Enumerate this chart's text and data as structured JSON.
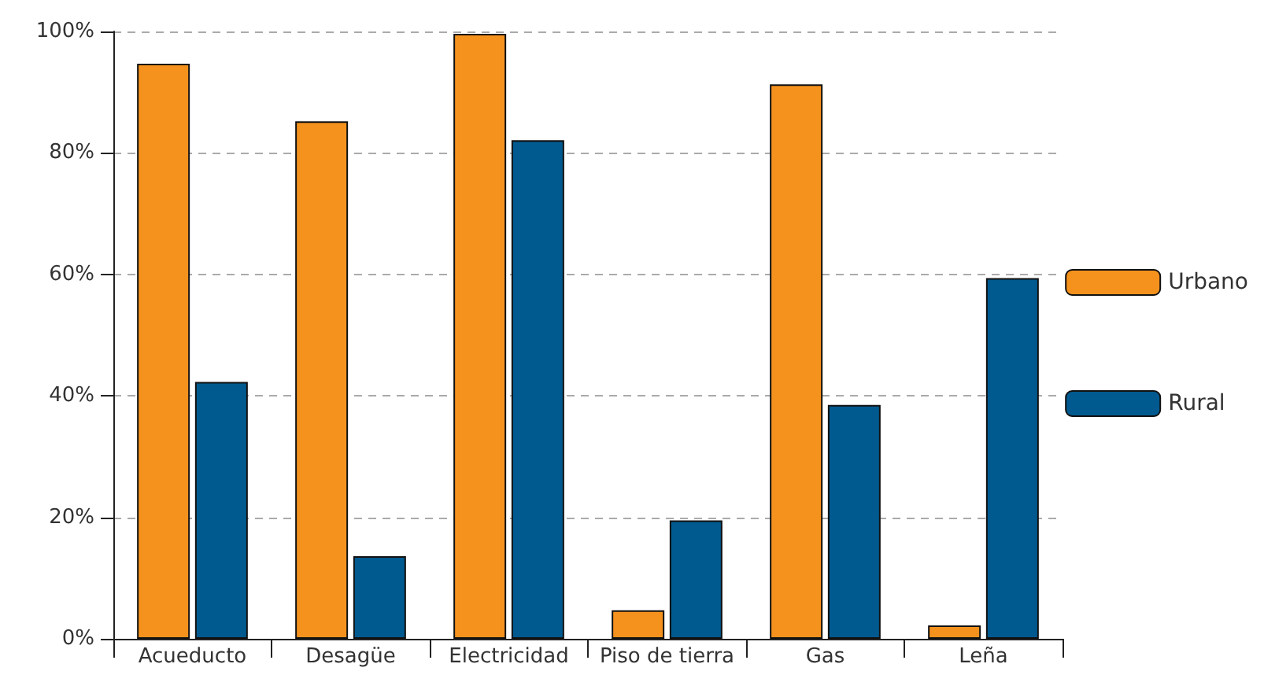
{
  "chart_data": {
    "type": "bar",
    "categories": [
      "Acueducto",
      "Desagüe",
      "Electricidad",
      "Piso de tierra",
      "Gas",
      "Leña"
    ],
    "series": [
      {
        "name": "Urbano",
        "color": "#f5921e",
        "values": [
          94.7,
          85.2,
          99.6,
          4.7,
          91.3,
          2.2
        ]
      },
      {
        "name": "Rural",
        "color": "#005a8f",
        "values": [
          42.3,
          13.6,
          82.1,
          19.5,
          38.5,
          59.4
        ]
      }
    ],
    "ylim": [
      0,
      100
    ],
    "yticks": [
      {
        "value": 0,
        "label": "0%"
      },
      {
        "value": 20,
        "label": "20%"
      },
      {
        "value": 40,
        "label": "40%"
      },
      {
        "value": 60,
        "label": "60%"
      },
      {
        "value": 80,
        "label": "80%"
      },
      {
        "value": 100,
        "label": "100%"
      }
    ],
    "grid": "y",
    "legend": "right"
  }
}
